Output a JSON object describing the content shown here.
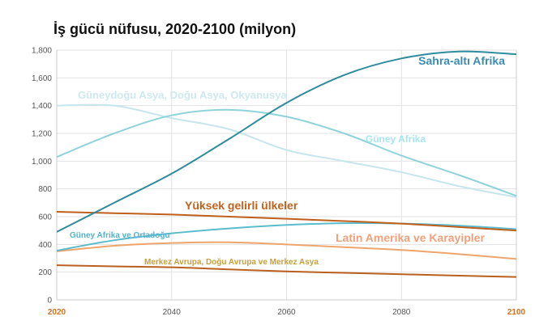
{
  "chart_data": {
    "type": "line",
    "title": "İş gücü nüfusu, 2020-2100 (milyon)",
    "xlabel": "",
    "ylabel": "",
    "xlim": [
      2020,
      2100
    ],
    "ylim": [
      0,
      1800
    ],
    "grid": true,
    "x_ticks": [
      "2020",
      "2040",
      "2060",
      "2080",
      "2100"
    ],
    "y_ticks": [
      "0",
      "200",
      "400",
      "600",
      "800",
      "1,000",
      "1,200",
      "1,400",
      "1,600",
      "1,800"
    ],
    "x": [
      2020,
      2030,
      2040,
      2050,
      2060,
      2070,
      2080,
      2090,
      2100
    ],
    "series": [
      {
        "name": "Sahra-altı Afrika",
        "color": "#2e8c9c",
        "label_color": "#3a8cb4",
        "values": [
          490,
          700,
          910,
          1160,
          1420,
          1620,
          1740,
          1790,
          1770
        ]
      },
      {
        "name": "Güney Afrika",
        "color": "#8fd3da",
        "label_color": "#a6e6ee",
        "values": [
          1030,
          1200,
          1330,
          1370,
          1320,
          1200,
          1040,
          900,
          750
        ]
      },
      {
        "name": "Güneydoğu Asya, Doğu Asya, Okyanusya",
        "color": "#c6e5ec",
        "label_color": "#cde9f0",
        "values": [
          1400,
          1400,
          1310,
          1230,
          1080,
          1000,
          920,
          820,
          740
        ]
      },
      {
        "name": "Yüksek gelirli ülkeler",
        "color": "#bf5f1c",
        "label_color": "#c0621d",
        "values": [
          635,
          625,
          615,
          600,
          585,
          568,
          550,
          525,
          500
        ]
      },
      {
        "name": "Güney Afrika ve Ortadoğu",
        "color": "#5bbccd",
        "label_color": "#55b2cc",
        "values": [
          355,
          430,
          480,
          515,
          540,
          553,
          550,
          535,
          510
        ]
      },
      {
        "name": "Latin Amerika ve Karayipler",
        "color": "#eea56c",
        "label_color": "#f2a07a",
        "values": [
          350,
          390,
          410,
          415,
          400,
          380,
          360,
          330,
          295
        ]
      },
      {
        "name": "Merkez Avrupa, Doğu Avrupa ve Merkez Asya",
        "color": "#b9601f",
        "label_color": "#c8a03a",
        "values": [
          250,
          242,
          235,
          220,
          205,
          195,
          185,
          175,
          165
        ]
      }
    ],
    "x_tick_highlight_color": "#d4701e"
  }
}
